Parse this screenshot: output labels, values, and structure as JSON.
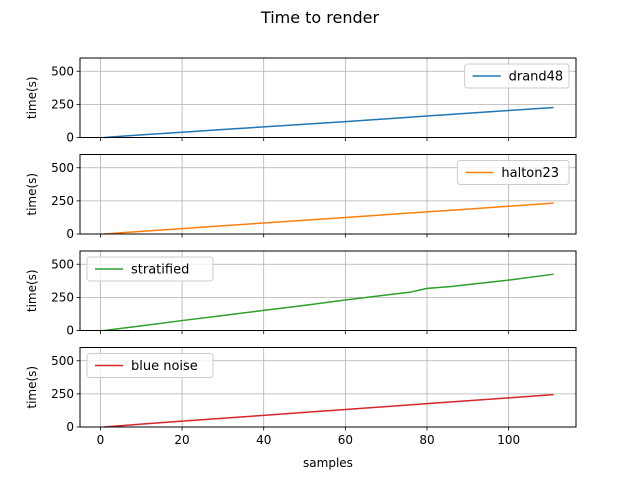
{
  "figure": {
    "title": "Time to render"
  },
  "chart_data": [
    {
      "type": "line",
      "title": "",
      "xlabel": "",
      "ylabel": "time(s)",
      "xlim": [
        -5,
        116.5
      ],
      "ylim": [
        0,
        600
      ],
      "xticks": [
        0,
        20,
        40,
        60,
        80,
        100
      ],
      "yticks": [
        0,
        250,
        500
      ],
      "show_x_tick_labels": false,
      "grid": true,
      "legend_position": "top-right",
      "series": [
        {
          "name": "drand48",
          "color": "#1f77b4",
          "x": [
            1,
            10,
            20,
            30,
            40,
            50,
            60,
            70,
            80,
            90,
            100,
            111
          ],
          "y": [
            0,
            20,
            40,
            60,
            80,
            100,
            120,
            141,
            162,
            183,
            204,
            226
          ]
        }
      ]
    },
    {
      "type": "line",
      "title": "",
      "xlabel": "",
      "ylabel": "time(s)",
      "xlim": [
        -5,
        116.5
      ],
      "ylim": [
        0,
        600
      ],
      "xticks": [
        0,
        20,
        40,
        60,
        80,
        100
      ],
      "yticks": [
        0,
        250,
        500
      ],
      "show_x_tick_labels": false,
      "grid": true,
      "legend_position": "top-right",
      "series": [
        {
          "name": "halton23",
          "color": "#ff7f0e",
          "x": [
            1,
            10,
            20,
            30,
            40,
            50,
            60,
            70,
            80,
            90,
            100,
            111
          ],
          "y": [
            0,
            20,
            41,
            62,
            83,
            104,
            125,
            146,
            167,
            188,
            209,
            233
          ]
        }
      ]
    },
    {
      "type": "line",
      "title": "",
      "xlabel": "",
      "ylabel": "time(s)",
      "xlim": [
        -5,
        116.5
      ],
      "ylim": [
        0,
        600
      ],
      "xticks": [
        0,
        20,
        40,
        60,
        80,
        100
      ],
      "yticks": [
        0,
        250,
        500
      ],
      "show_x_tick_labels": false,
      "grid": true,
      "legend_position": "top-left",
      "series": [
        {
          "name": "stratified",
          "color": "#2ca02c",
          "x": [
            1,
            10,
            20,
            30,
            40,
            50,
            60,
            70,
            76,
            80,
            86,
            90,
            100,
            111
          ],
          "y": [
            0,
            35,
            75,
            113,
            152,
            190,
            230,
            268,
            290,
            318,
            332,
            346,
            380,
            425
          ]
        }
      ]
    },
    {
      "type": "line",
      "title": "",
      "xlabel": "samples",
      "ylabel": "time(s)",
      "xlim": [
        -5,
        116.5
      ],
      "ylim": [
        0,
        600
      ],
      "xticks": [
        0,
        20,
        40,
        60,
        80,
        100
      ],
      "yticks": [
        0,
        250,
        500
      ],
      "show_x_tick_labels": true,
      "grid": true,
      "legend_position": "top-left",
      "series": [
        {
          "name": "blue noise",
          "color": "#d62728",
          "x": [
            1,
            10,
            20,
            30,
            40,
            50,
            60,
            70,
            80,
            90,
            100,
            111
          ],
          "y": [
            0,
            22,
            44,
            66,
            88,
            110,
            132,
            154,
            176,
            198,
            220,
            244
          ]
        }
      ]
    }
  ]
}
